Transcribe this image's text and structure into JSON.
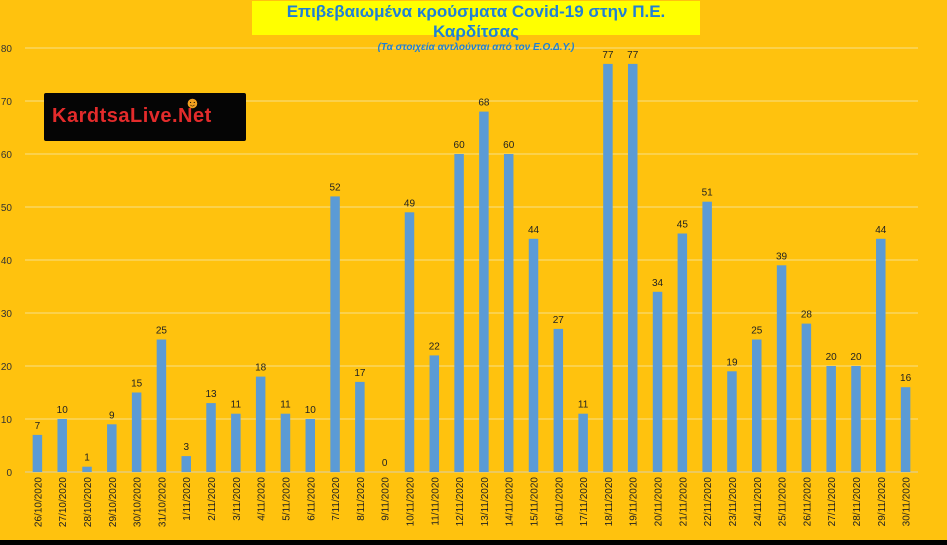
{
  "colors": {
    "background": "#FFC20E",
    "bar": "#5B9BD5",
    "grid": "#F7E08A",
    "title_bg": "#FFFF00",
    "title_text": "#1F7FD6"
  },
  "header": {
    "title": "Επιβεβαιωμένα κρούσματα Covid-19 στην Π.Ε. Καρδίτσας",
    "subtitle": "(Τα στοιχεία αντλούνται από τον Ε.Ο.Δ.Υ.)"
  },
  "logo": {
    "text": "KardtsaLive.Net",
    "icon": "person-icon"
  },
  "chart_data": {
    "type": "bar",
    "title": "Επιβεβαιωμένα κρούσματα Covid-19 στην Π.Ε. Καρδίτσας",
    "subtitle": "(Τα στοιχεία αντλούνται από τον Ε.Ο.Δ.Υ.)",
    "xlabel": "",
    "ylabel": "",
    "ylim": [
      0,
      80
    ],
    "yticks": [
      0,
      10,
      20,
      30,
      40,
      50,
      60,
      70,
      80
    ],
    "grid": true,
    "legend": "none",
    "categories": [
      "26/10/2020",
      "27/10/2020",
      "28/10/2020",
      "29/10/2020",
      "30/10/2020",
      "31/10/2020",
      "1/11/2020",
      "2/11/2020",
      "3/11/2020",
      "4/11/2020",
      "5/11/2020",
      "6/11/2020",
      "7/11/2020",
      "8/11/2020",
      "9/11/2020",
      "10/11/2020",
      "11/11/2020",
      "12/11/2020",
      "13/11/2020",
      "14/11/2020",
      "15/11/2020",
      "16/11/2020",
      "17/11/2020",
      "18/11/2020",
      "19/11/2020",
      "20/11/2020",
      "21/11/2020",
      "22/11/2020",
      "23/11/2020",
      "24/11/2020",
      "25/11/2020",
      "26/11/2020",
      "27/11/2020",
      "28/11/2020",
      "29/11/2020",
      "30/11/2020"
    ],
    "values": [
      7,
      10,
      1,
      9,
      15,
      25,
      3,
      13,
      11,
      18,
      11,
      10,
      52,
      17,
      0,
      49,
      22,
      60,
      68,
      60,
      44,
      27,
      11,
      77,
      77,
      34,
      45,
      51,
      19,
      25,
      39,
      28,
      20,
      20,
      44,
      16
    ]
  }
}
